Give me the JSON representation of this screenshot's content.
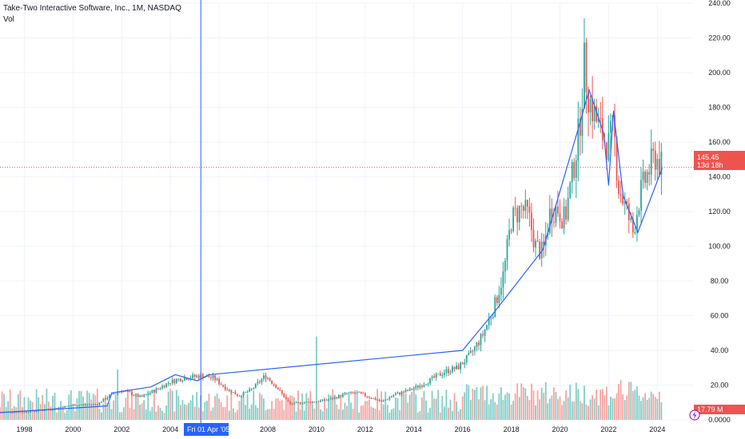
{
  "header": {
    "symbol_line": "Take-Two Interactive Software, Inc., 1M, NASDAQ",
    "volume_label": "Vol"
  },
  "crosshair": {
    "date_label": "Fri 01 Apr '05"
  },
  "price_tag": {
    "price": "145.45",
    "countdown": "13d 18h"
  },
  "volume_tag": {
    "label": "17.79 M"
  },
  "colors": {
    "up": "#26a69a",
    "down": "#ef5350",
    "up_vol": "#7fcdc5",
    "down_vol": "#f5a3a1",
    "trendline": "#2962ff",
    "crosshair": "#2962ff",
    "price_line": "#ef5350"
  },
  "icons": {
    "alert": "lightning-icon"
  },
  "chart_data": {
    "type": "candlestick",
    "title": "Take-Two Interactive Software, Inc., 1M, NASDAQ",
    "interval": "1M",
    "y_axis": {
      "range": [
        0,
        240
      ],
      "ticks": [
        "0.0000",
        "20.00",
        "40.00",
        "60.00",
        "80.00",
        "100.00",
        "120.00",
        "140.00",
        "160.00",
        "180.00",
        "200.00",
        "220.00",
        "240.00"
      ]
    },
    "x_axis": {
      "range": [
        1997.0,
        2025.5
      ],
      "ticks": [
        "1998",
        "2000",
        "2002",
        "2004",
        "2006",
        "2008",
        "2010",
        "2012",
        "2014",
        "2016",
        "2018",
        "2020",
        "2022",
        "2024"
      ]
    },
    "last_price": 145.45,
    "trendline": [
      [
        1997.0,
        4.2
      ],
      [
        2001.4,
        8.0
      ],
      [
        2001.6,
        15.5
      ],
      [
        2003.2,
        19.0
      ],
      [
        2004.2,
        26.0
      ],
      [
        2005.1,
        22.5
      ],
      [
        2005.6,
        26.0
      ],
      [
        2016.0,
        40.0
      ],
      [
        2017.3,
        62.0
      ],
      [
        2019.3,
        98.0
      ],
      [
        2020.8,
        170.0
      ],
      [
        2021.2,
        190.0
      ],
      [
        2021.8,
        165.0
      ],
      [
        2022.0,
        135.0
      ],
      [
        2022.2,
        178.0
      ],
      [
        2022.6,
        129.0
      ],
      [
        2023.2,
        108.0
      ],
      [
        2024.2,
        145.0
      ]
    ],
    "price_path": [
      [
        1997.0,
        4.5
      ],
      [
        1998.0,
        4.6
      ],
      [
        1999.0,
        6.0
      ],
      [
        2000.0,
        8.5
      ],
      [
        2001.0,
        9.0
      ],
      [
        2001.5,
        14.0
      ],
      [
        2002.0,
        17.0
      ],
      [
        2002.8,
        13.0
      ],
      [
        2003.5,
        18.0
      ],
      [
        2004.0,
        22.0
      ],
      [
        2004.5,
        24.0
      ],
      [
        2005.3,
        25.5
      ],
      [
        2005.8,
        24.0
      ],
      [
        2006.3,
        18.0
      ],
      [
        2006.8,
        14.0
      ],
      [
        2007.3,
        17.0
      ],
      [
        2007.9,
        25.5
      ],
      [
        2008.3,
        20.0
      ],
      [
        2008.9,
        9.0
      ],
      [
        2009.4,
        10.0
      ],
      [
        2010.0,
        10.5
      ],
      [
        2010.6,
        12.0
      ],
      [
        2011.2,
        15.0
      ],
      [
        2011.7,
        15.5
      ],
      [
        2012.2,
        13.0
      ],
      [
        2012.7,
        10.5
      ],
      [
        2013.2,
        14.5
      ],
      [
        2013.8,
        17.0
      ],
      [
        2014.3,
        20.0
      ],
      [
        2014.8,
        24.0
      ],
      [
        2015.3,
        28.0
      ],
      [
        2015.8,
        30.0
      ],
      [
        2016.3,
        37.0
      ],
      [
        2016.8,
        48.0
      ],
      [
        2017.3,
        65.0
      ],
      [
        2017.7,
        85.0
      ],
      [
        2018.0,
        115.0
      ],
      [
        2018.4,
        122.0
      ],
      [
        2018.7,
        118.0
      ],
      [
        2019.0,
        100.0
      ],
      [
        2019.3,
        96.0
      ],
      [
        2019.6,
        120.0
      ],
      [
        2019.9,
        122.0
      ],
      [
        2020.2,
        115.0
      ],
      [
        2020.5,
        140.0
      ],
      [
        2020.8,
        168.0
      ],
      [
        2021.0,
        205.0
      ],
      [
        2021.2,
        185.0
      ],
      [
        2021.5,
        172.0
      ],
      [
        2021.8,
        162.0
      ],
      [
        2022.0,
        158.0
      ],
      [
        2022.2,
        168.0
      ],
      [
        2022.4,
        135.0
      ],
      [
        2022.7,
        122.0
      ],
      [
        2023.0,
        108.0
      ],
      [
        2023.3,
        130.0
      ],
      [
        2023.6,
        142.0
      ],
      [
        2023.9,
        152.0
      ],
      [
        2024.2,
        145.0
      ]
    ],
    "volume_spikes": [
      [
        2001.8,
        29
      ],
      [
        2010.0,
        48
      ],
      [
        2022.5,
        23
      ]
    ]
  }
}
